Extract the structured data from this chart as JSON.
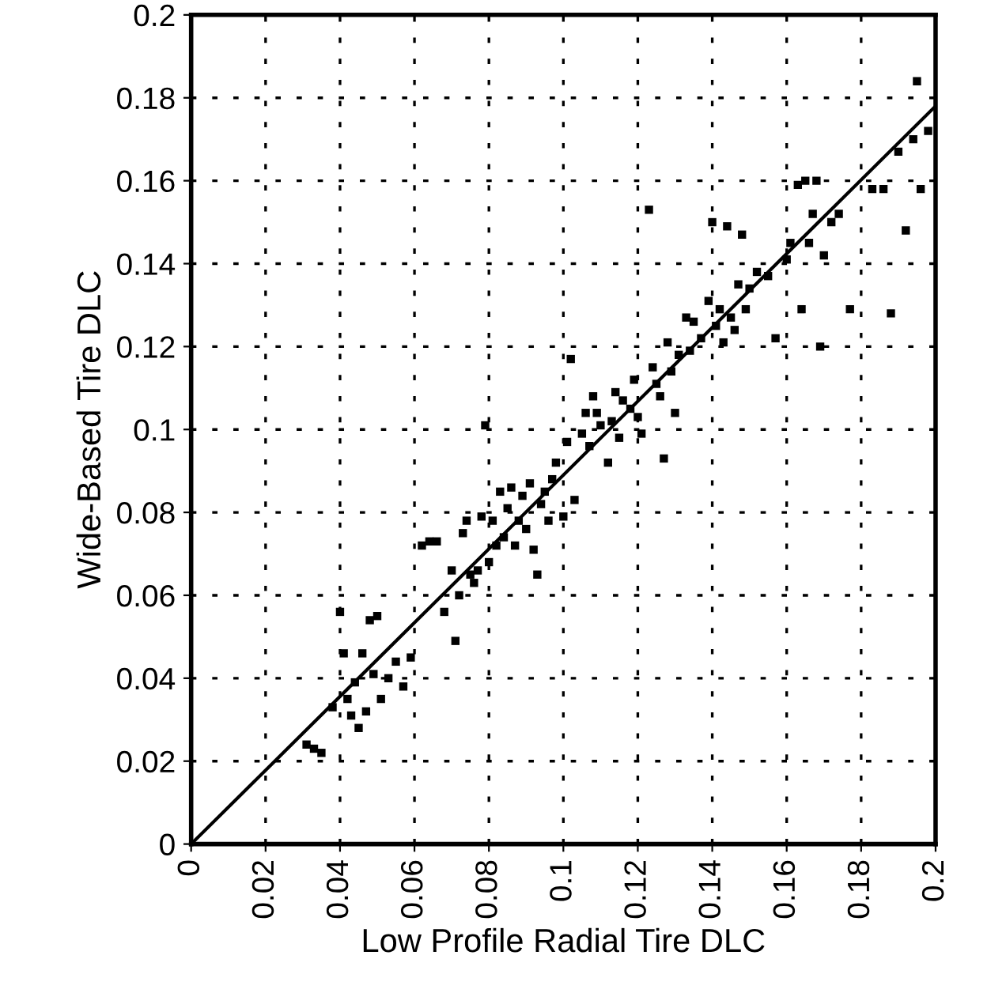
{
  "chart_data": {
    "type": "scatter",
    "xlabel": "Low Profile Radial Tire DLC",
    "ylabel": "Wide-Based Tire DLC",
    "xlim": [
      0,
      0.2
    ],
    "ylim": [
      0,
      0.2
    ],
    "xticks": [
      0,
      0.02,
      0.04,
      0.06,
      0.08,
      0.1,
      0.12,
      0.14,
      0.16,
      0.18,
      0.2
    ],
    "yticks": [
      0,
      0.02,
      0.04,
      0.06,
      0.08,
      0.1,
      0.12,
      0.14,
      0.16,
      0.18,
      0.2
    ],
    "grid": true,
    "series": [
      {
        "color": "#000000",
        "marker": "square",
        "x": [
          0.031,
          0.033,
          0.035,
          0.038,
          0.04,
          0.041,
          0.042,
          0.043,
          0.044,
          0.045,
          0.046,
          0.047,
          0.048,
          0.049,
          0.05,
          0.051,
          0.053,
          0.055,
          0.057,
          0.059,
          0.062,
          0.064,
          0.066,
          0.068,
          0.07,
          0.071,
          0.072,
          0.073,
          0.074,
          0.075,
          0.076,
          0.077,
          0.078,
          0.079,
          0.08,
          0.081,
          0.082,
          0.083,
          0.084,
          0.085,
          0.086,
          0.087,
          0.088,
          0.089,
          0.09,
          0.091,
          0.092,
          0.093,
          0.094,
          0.095,
          0.096,
          0.097,
          0.098,
          0.1,
          0.101,
          0.102,
          0.103,
          0.105,
          0.106,
          0.107,
          0.108,
          0.109,
          0.11,
          0.112,
          0.113,
          0.114,
          0.115,
          0.116,
          0.118,
          0.119,
          0.12,
          0.121,
          0.123,
          0.124,
          0.125,
          0.126,
          0.127,
          0.128,
          0.129,
          0.13,
          0.131,
          0.133,
          0.134,
          0.135,
          0.137,
          0.139,
          0.14,
          0.141,
          0.142,
          0.143,
          0.144,
          0.145,
          0.146,
          0.147,
          0.148,
          0.149,
          0.15,
          0.152,
          0.155,
          0.157,
          0.16,
          0.161,
          0.163,
          0.164,
          0.165,
          0.166,
          0.167,
          0.168,
          0.169,
          0.17,
          0.172,
          0.174,
          0.177,
          0.183,
          0.186,
          0.188,
          0.19,
          0.192,
          0.194,
          0.195,
          0.196,
          0.198
        ],
        "values": [
          0.024,
          0.023,
          0.022,
          0.033,
          0.056,
          0.046,
          0.035,
          0.031,
          0.039,
          0.028,
          0.046,
          0.032,
          0.054,
          0.041,
          0.055,
          0.035,
          0.04,
          0.044,
          0.038,
          0.045,
          0.072,
          0.073,
          0.073,
          0.056,
          0.066,
          0.049,
          0.06,
          0.075,
          0.078,
          0.065,
          0.063,
          0.066,
          0.079,
          0.101,
          0.068,
          0.078,
          0.072,
          0.085,
          0.074,
          0.081,
          0.086,
          0.072,
          0.078,
          0.084,
          0.076,
          0.087,
          0.071,
          0.065,
          0.082,
          0.085,
          0.078,
          0.088,
          0.092,
          0.079,
          0.097,
          0.117,
          0.083,
          0.099,
          0.104,
          0.096,
          0.108,
          0.104,
          0.101,
          0.092,
          0.102,
          0.109,
          0.098,
          0.107,
          0.105,
          0.112,
          0.103,
          0.099,
          0.153,
          0.115,
          0.111,
          0.108,
          0.093,
          0.121,
          0.114,
          0.104,
          0.118,
          0.127,
          0.119,
          0.126,
          0.122,
          0.131,
          0.15,
          0.125,
          0.129,
          0.121,
          0.149,
          0.127,
          0.124,
          0.135,
          0.147,
          0.129,
          0.134,
          0.138,
          0.137,
          0.122,
          0.141,
          0.145,
          0.159,
          0.129,
          0.16,
          0.145,
          0.152,
          0.16,
          0.12,
          0.142,
          0.15,
          0.152,
          0.129,
          0.158,
          0.158,
          0.128,
          0.167,
          0.148,
          0.17,
          0.184,
          0.158,
          0.172
        ]
      },
      {
        "type": "line",
        "color": "#000000",
        "marker": "none",
        "line_style": "solid",
        "x": [
          0,
          0.2
        ],
        "values": [
          0,
          0.178
        ]
      }
    ]
  }
}
